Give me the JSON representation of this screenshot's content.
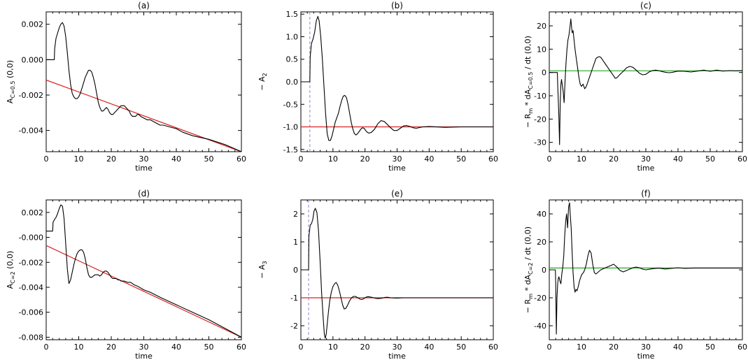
{
  "chart_data": [
    {
      "type": "line",
      "title": "(a)",
      "xlabel": "time",
      "ylabel": "A_{C=0.5} (0,0)",
      "ylabel_parts": {
        "base": "A",
        "sub": "C=0.5",
        "tail": " (0,0)"
      },
      "xlim": [
        0,
        60
      ],
      "ylim": [
        -0.0052,
        0.0027
      ],
      "xticks": [
        0,
        10,
        20,
        30,
        40,
        50,
        60
      ],
      "yticks": [
        -0.004,
        -0.002,
        0.0,
        0.002
      ],
      "ytick_labels": [
        "-0.004",
        "-0.002",
        "0.000",
        "0.002"
      ],
      "grid": false,
      "series": [
        {
          "color": "#000000",
          "x": [
            0,
            2.5,
            2.6,
            3,
            3.5,
            4,
            4.5,
            5,
            5.5,
            6,
            6.5,
            7,
            7.5,
            8,
            8.5,
            9,
            9.5,
            10,
            10.5,
            11,
            11.5,
            12,
            12.5,
            13,
            13.5,
            14,
            14.5,
            15,
            15.5,
            16,
            16.5,
            17,
            17.5,
            18,
            18.5,
            19,
            19.5,
            20,
            20.5,
            21,
            21.5,
            22,
            22.5,
            23,
            23.5,
            24,
            24.5,
            25,
            25.5,
            26,
            26.5,
            27,
            27.5,
            28,
            28.5,
            29,
            30,
            31,
            32,
            33,
            34,
            35,
            36,
            38,
            40,
            42,
            45,
            50,
            55,
            60
          ],
          "y": [
            0.0,
            0.0,
            0.0006,
            0.0012,
            0.0015,
            0.0018,
            0.002,
            0.0021,
            0.0019,
            0.0013,
            0.0004,
            -0.0006,
            -0.0014,
            -0.0019,
            -0.0021,
            -0.0022,
            -0.0022,
            -0.0021,
            -0.0019,
            -0.0016,
            -0.0013,
            -0.001,
            -0.0008,
            -0.0006,
            -0.0006,
            -0.0007,
            -0.001,
            -0.0014,
            -0.0019,
            -0.0024,
            -0.0027,
            -0.0029,
            -0.0029,
            -0.0028,
            -0.0027,
            -0.0028,
            -0.003,
            -0.0031,
            -0.0031,
            -0.003,
            -0.0029,
            -0.0028,
            -0.0027,
            -0.0026,
            -0.0026,
            -0.0026,
            -0.0027,
            -0.0028,
            -0.0029,
            -0.0031,
            -0.0032,
            -0.0032,
            -0.0032,
            -0.0031,
            -0.0031,
            -0.0032,
            -0.0033,
            -0.0034,
            -0.0034,
            -0.0035,
            -0.0036,
            -0.0037,
            -0.0037,
            -0.0038,
            -0.0039,
            -0.0041,
            -0.0043,
            -0.0045,
            -0.0048,
            -0.0052
          ]
        },
        {
          "color": "#dd2222",
          "x": [
            0,
            60
          ],
          "y": [
            -0.00115,
            -0.0052
          ]
        }
      ]
    },
    {
      "type": "line",
      "title": "(b)",
      "xlabel": "time",
      "ylabel": "− A_2",
      "ylabel_parts": {
        "base": "− A",
        "sub": "2",
        "tail": ""
      },
      "xlim": [
        0,
        60
      ],
      "ylim": [
        -1.55,
        1.55
      ],
      "xticks": [
        0,
        10,
        20,
        30,
        40,
        50,
        60
      ],
      "yticks": [
        -1.5,
        -1.0,
        -0.5,
        0.0,
        0.5,
        1.0,
        1.5
      ],
      "ytick_labels": [
        "-1.5",
        "-1.0",
        "-0.5",
        "0.0",
        "0.5",
        "1.0",
        "1.5"
      ],
      "grid": false,
      "vline": {
        "x": 2.8,
        "color": "#8888cc"
      },
      "series": [
        {
          "color": "#000000",
          "x": [
            0,
            2.8,
            2.9,
            3.3,
            3.8,
            4.3,
            4.8,
            5.3,
            5.7,
            6.2,
            6.7,
            7.2,
            7.7,
            8.2,
            8.7,
            9.2,
            9.7,
            10.2,
            10.7,
            11.2,
            11.7,
            12.2,
            12.7,
            13.2,
            13.7,
            14.2,
            14.7,
            15.2,
            15.7,
            16.2,
            16.7,
            17.2,
            17.7,
            18.2,
            18.7,
            19.2,
            19.7,
            20.2,
            20.7,
            21.2,
            22,
            23,
            24,
            25,
            26,
            27,
            28,
            29,
            30,
            31,
            32,
            33,
            34,
            35,
            36,
            38,
            40,
            45,
            50,
            55,
            60
          ],
          "y": [
            0.0,
            0.0,
            0.55,
            0.85,
            0.95,
            1.1,
            1.35,
            1.45,
            1.35,
            1.0,
            0.5,
            -0.1,
            -0.7,
            -1.15,
            -1.3,
            -1.3,
            -1.2,
            -1.05,
            -0.9,
            -0.8,
            -0.7,
            -0.55,
            -0.42,
            -0.32,
            -0.3,
            -0.35,
            -0.5,
            -0.7,
            -0.9,
            -1.05,
            -1.15,
            -1.18,
            -1.15,
            -1.1,
            -1.05,
            -1.02,
            -1.03,
            -1.08,
            -1.12,
            -1.14,
            -1.12,
            -1.05,
            -0.93,
            -0.86,
            -0.88,
            -0.95,
            -1.02,
            -1.08,
            -1.08,
            -1.03,
            -0.98,
            -0.97,
            -0.99,
            -1.02,
            -1.03,
            -1.0,
            -0.99,
            -1.01,
            -1.0,
            -1.0,
            -1.0
          ]
        },
        {
          "color": "#dd2222",
          "x": [
            0,
            60
          ],
          "y": [
            -1.0,
            -1.0
          ]
        }
      ]
    },
    {
      "type": "line",
      "title": "(c)",
      "xlabel": "time",
      "ylabel": "− R_m * dA_{C=0.5} / dt (0,0)",
      "ylabel_parts": {
        "pre": "− R",
        "sub1": "m",
        "mid": " * dA",
        "sub2": "C=0.5",
        "tail": " / dt (0,0)"
      },
      "xlim": [
        0,
        60
      ],
      "ylim": [
        -34,
        26
      ],
      "xticks": [
        0,
        10,
        20,
        30,
        40,
        50,
        60
      ],
      "yticks": [
        -30,
        -20,
        -10,
        0,
        10,
        20
      ],
      "ytick_labels": [
        "-30",
        "-20",
        "-10",
        "0",
        "10",
        "20"
      ],
      "grid": false,
      "series": [
        {
          "color": "#000000",
          "x": [
            0,
            2.5,
            2.6,
            2.8,
            3.0,
            3.2,
            3.4,
            3.6,
            3.8,
            4.0,
            4.3,
            4.6,
            4.9,
            5.2,
            5.5,
            5.8,
            6.1,
            6.4,
            6.7,
            6.9,
            7.1,
            7.4,
            7.7,
            8.0,
            8.4,
            8.8,
            9.2,
            9.6,
            10,
            10.5,
            11,
            11.5,
            12,
            12.5,
            13,
            13.5,
            14,
            14.5,
            15,
            15.5,
            16,
            16.5,
            17,
            17.5,
            18,
            18.5,
            19,
            19.5,
            20,
            20.5,
            21,
            21.5,
            22,
            23,
            24,
            25,
            26,
            27,
            28,
            29,
            30,
            31,
            32,
            33,
            34,
            35,
            36,
            37,
            38,
            39,
            40,
            42,
            44,
            46,
            48,
            50,
            52,
            54,
            56,
            58,
            60
          ],
          "y": [
            0,
            0,
            -5,
            -12,
            -20,
            -31,
            -14,
            -5,
            -3,
            -5,
            -8,
            -13,
            -4,
            4,
            10,
            14,
            16,
            19,
            23,
            20,
            17,
            18,
            14,
            10,
            6,
            2,
            -2,
            -5,
            -6,
            -5,
            -7,
            -6,
            -4,
            -2,
            0,
            2,
            4,
            6,
            6.5,
            6.8,
            6.5,
            5.5,
            4.5,
            3.5,
            2.5,
            1.5,
            0.5,
            -0.5,
            -1.5,
            -2.5,
            -2.3,
            -1.5,
            -0.8,
            0.5,
            2,
            2.6,
            2.2,
            1,
            -0.3,
            -1,
            -0.8,
            0.2,
            0.8,
            1,
            0.8,
            0.4,
            0.1,
            -0.1,
            0,
            0.3,
            0.6,
            0.5,
            0.2,
            0.6,
            1.0,
            0.5,
            1.0,
            0.6,
            0.8,
            0.7,
            0.8
          ]
        },
        {
          "color": "#22aa22",
          "x": [
            0,
            60
          ],
          "y": [
            0.7,
            0.7
          ]
        }
      ]
    },
    {
      "type": "line",
      "title": "(d)",
      "xlabel": "time",
      "ylabel": "A_{C=2} (0,0)",
      "ylabel_parts": {
        "base": "A",
        "sub": "C=2",
        "tail": " (0,0)"
      },
      "xlim": [
        0,
        60
      ],
      "ylim": [
        -0.0082,
        0.003
      ],
      "xticks": [
        0,
        10,
        20,
        30,
        40,
        50,
        60
      ],
      "yticks": [
        -0.008,
        -0.006,
        -0.004,
        -0.002,
        0.0,
        0.002
      ],
      "ytick_labels": [
        "-0.008",
        "-0.006",
        "-0.004",
        "-0.002",
        "-0.000",
        "0.002"
      ],
      "grid": false,
      "series": [
        {
          "color": "#000000",
          "x": [
            0,
            2,
            2.1,
            2.5,
            3,
            3.5,
            4,
            4.5,
            5,
            5.5,
            6,
            6.5,
            7,
            7.5,
            8,
            8.5,
            9,
            9.5,
            10,
            10.5,
            11,
            11.5,
            12,
            12.5,
            13,
            13.5,
            14,
            14.5,
            15,
            15.5,
            16,
            16.5,
            17,
            17.5,
            18,
            18.5,
            19,
            19.5,
            20,
            20.5,
            21,
            21.5,
            22,
            22.5,
            23,
            24,
            25,
            26,
            27,
            28,
            30,
            32,
            35,
            40,
            45,
            50,
            55,
            60
          ],
          "y": [
            0.0005,
            0.0005,
            0.0012,
            0.0014,
            0.0016,
            0.0019,
            0.0023,
            0.0026,
            0.0025,
            0.0015,
            -0.0005,
            -0.0025,
            -0.0037,
            -0.0034,
            -0.0028,
            -0.0022,
            -0.0017,
            -0.0013,
            -0.0011,
            -0.001,
            -0.001,
            -0.0012,
            -0.0017,
            -0.0024,
            -0.003,
            -0.0032,
            -0.0032,
            -0.0031,
            -0.003,
            -0.003,
            -0.003,
            -0.0031,
            -0.003,
            -0.0028,
            -0.0027,
            -0.0027,
            -0.0028,
            -0.003,
            -0.0032,
            -0.0033,
            -0.0033,
            -0.0033,
            -0.0034,
            -0.0034,
            -0.0035,
            -0.0035,
            -0.0036,
            -0.0036,
            -0.0038,
            -0.0039,
            -0.0042,
            -0.0044,
            -0.0048,
            -0.0054,
            -0.006,
            -0.0066,
            -0.0073,
            -0.008
          ]
        },
        {
          "color": "#dd2222",
          "x": [
            0,
            60
          ],
          "y": [
            -0.00065,
            -0.008
          ]
        }
      ]
    },
    {
      "type": "line",
      "title": "(e)",
      "xlabel": "time",
      "ylabel": "− A_3",
      "ylabel_parts": {
        "base": "− A",
        "sub": "3",
        "tail": ""
      },
      "xlim": [
        0,
        60
      ],
      "ylim": [
        -2.5,
        2.5
      ],
      "xticks": [
        0,
        10,
        20,
        30,
        40,
        50,
        60
      ],
      "yticks": [
        -2,
        -1,
        0,
        1,
        2
      ],
      "ytick_labels": [
        "-2",
        "-1",
        "0",
        "1",
        "2"
      ],
      "grid": false,
      "vline": {
        "x": 2.4,
        "color": "#8888cc"
      },
      "series": [
        {
          "color": "#000000",
          "x": [
            0,
            2.4,
            2.5,
            2.9,
            3.3,
            3.7,
            4.1,
            4.5,
            5.0,
            5.5,
            6.0,
            6.5,
            7.0,
            7.3,
            7.6,
            7.9,
            8.2,
            8.6,
            9.0,
            9.5,
            10,
            10.5,
            11,
            11.5,
            12,
            12.5,
            13,
            13.5,
            14,
            14.5,
            15,
            15.5,
            16,
            16.5,
            17,
            17.5,
            18,
            18.5,
            19,
            19.5,
            20,
            20.5,
            21,
            22,
            23,
            24,
            25,
            26,
            27,
            28,
            30,
            32,
            35,
            40,
            45,
            50,
            55,
            60
          ],
          "y": [
            0,
            0,
            1.2,
            1.6,
            1.65,
            1.8,
            2.1,
            2.2,
            2.05,
            1.4,
            0.3,
            -0.9,
            -1.8,
            -2.3,
            -2.45,
            -2.3,
            -1.95,
            -1.5,
            -1.1,
            -0.8,
            -0.6,
            -0.5,
            -0.45,
            -0.55,
            -0.75,
            -1.0,
            -1.25,
            -1.4,
            -1.38,
            -1.28,
            -1.15,
            -1.05,
            -0.98,
            -0.95,
            -0.95,
            -0.98,
            -1.02,
            -1.05,
            -1.06,
            -1.04,
            -1.0,
            -0.97,
            -0.96,
            -0.98,
            -1.01,
            -1.03,
            -1.02,
            -0.99,
            -0.98,
            -1.0,
            -1.01,
            -1.0,
            -1.0,
            -1.0,
            -1.0,
            -1.0,
            -1.0,
            -1.0
          ]
        },
        {
          "color": "#dd2222",
          "x": [
            0,
            60
          ],
          "y": [
            -1.0,
            -1.0
          ]
        }
      ]
    },
    {
      "type": "line",
      "title": "(f)",
      "xlabel": "time",
      "ylabel": "− R_m * dA_{C=2} / dt (0,0)",
      "ylabel_parts": {
        "pre": "− R",
        "sub1": "m",
        "mid": " * dA",
        "sub2": "C=2",
        "tail": " / dt (0,0)"
      },
      "xlim": [
        0,
        60
      ],
      "ylim": [
        -50,
        50
      ],
      "xticks": [
        0,
        10,
        20,
        30,
        40,
        50,
        60
      ],
      "yticks": [
        -40,
        -20,
        0,
        20,
        40
      ],
      "ytick_labels": [
        "-40",
        "-20",
        "0",
        "20",
        "40"
      ],
      "grid": false,
      "series": [
        {
          "color": "#000000",
          "x": [
            0,
            1.9,
            2.0,
            2.2,
            2.4,
            2.6,
            2.8,
            3.0,
            3.3,
            3.6,
            3.9,
            4.2,
            4.5,
            4.8,
            5.1,
            5.4,
            5.7,
            6.0,
            6.3,
            6.5,
            6.8,
            7.1,
            7.4,
            7.7,
            8.0,
            8.3,
            8.6,
            9.0,
            9.4,
            9.8,
            10.2,
            10.6,
            11,
            11.5,
            12,
            12.5,
            13,
            13.5,
            14,
            14.5,
            15,
            15.5,
            16,
            17,
            18,
            19,
            20,
            21,
            22,
            23,
            24,
            25,
            26,
            27,
            28,
            29,
            30,
            32,
            34,
            36,
            38,
            40,
            42,
            45,
            50,
            55,
            60
          ],
          "y": [
            0,
            0,
            -10,
            -46,
            -20,
            -10,
            -6,
            -5,
            -8,
            -10,
            -3,
            2,
            10,
            25,
            35,
            40,
            30,
            45,
            48,
            40,
            30,
            12,
            -2,
            -12,
            -16,
            -14,
            -15,
            -12,
            -8,
            -5,
            -3,
            -2,
            0,
            4,
            10,
            14,
            12,
            4,
            -2,
            -3,
            -2,
            -1,
            0,
            1,
            2,
            3,
            4,
            2,
            -0.5,
            -1.5,
            -0.5,
            0.5,
            1.5,
            2,
            1.5,
            0.5,
            0,
            0.8,
            1.2,
            0.6,
            1.0,
            1.5,
            1.0,
            1.3,
            1.3,
            1.3,
            1.3
          ]
        },
        {
          "color": "#22aa22",
          "x": [
            0,
            60
          ],
          "y": [
            1.3,
            1.3
          ]
        }
      ]
    }
  ]
}
